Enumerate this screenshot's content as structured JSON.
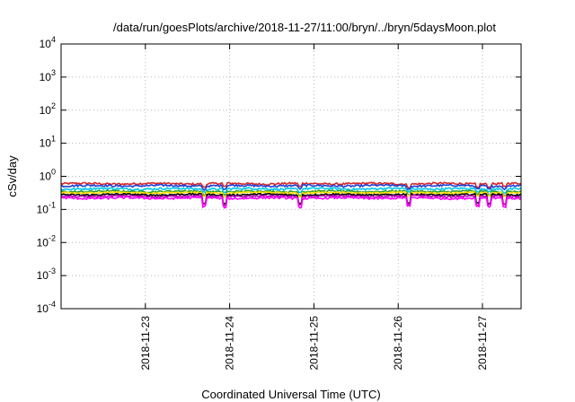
{
  "chart_data": {
    "type": "line",
    "title": "/data/run/goesPlots/archive/2018-11-27/11:00/bryn/../bryn/5daysMoon.plot",
    "xlabel": "Coordinated Universal Time (UTC)",
    "ylabel": "cSv/day",
    "yscale": "log",
    "ylim": [
      0.0001,
      10000
    ],
    "yticks": [
      {
        "base": "10",
        "exp": "4",
        "value": 10000
      },
      {
        "base": "10",
        "exp": "3",
        "value": 1000
      },
      {
        "base": "10",
        "exp": "2",
        "value": 100
      },
      {
        "base": "10",
        "exp": "1",
        "value": 10
      },
      {
        "base": "10",
        "exp": "0",
        "value": 1
      },
      {
        "base": "10",
        "exp": "-1",
        "value": 0.1
      },
      {
        "base": "10",
        "exp": "-2",
        "value": 0.01
      },
      {
        "base": "10",
        "exp": "-3",
        "value": 0.001
      },
      {
        "base": "10",
        "exp": "-4",
        "value": 0.0001
      }
    ],
    "xlim": [
      "2018-11-22 00:00",
      "2018-11-27 11:00"
    ],
    "xticks": [
      "2018-11-23",
      "2018-11-24",
      "2018-11-25",
      "2018-11-26",
      "2018-11-27"
    ],
    "grid": true,
    "series": [
      {
        "color": "#d62728",
        "level": 0.6,
        "spread": 0.08
      },
      {
        "color": "#1f3fd6",
        "level": 0.52,
        "spread": 0.07
      },
      {
        "color": "#00c8e8",
        "level": 0.42,
        "spread": 0.06
      },
      {
        "color": "#2ca02c",
        "level": 0.35,
        "spread": 0.04
      },
      {
        "color": "#ffe000",
        "level": 0.32,
        "spread": 0.03
      },
      {
        "color": "#000000",
        "level": 0.28,
        "spread": 0.03
      },
      {
        "color": "#b000b0",
        "level": 0.25,
        "spread": 0.03
      },
      {
        "color": "#ff00ff",
        "level": 0.22,
        "spread": 0.03
      }
    ]
  }
}
